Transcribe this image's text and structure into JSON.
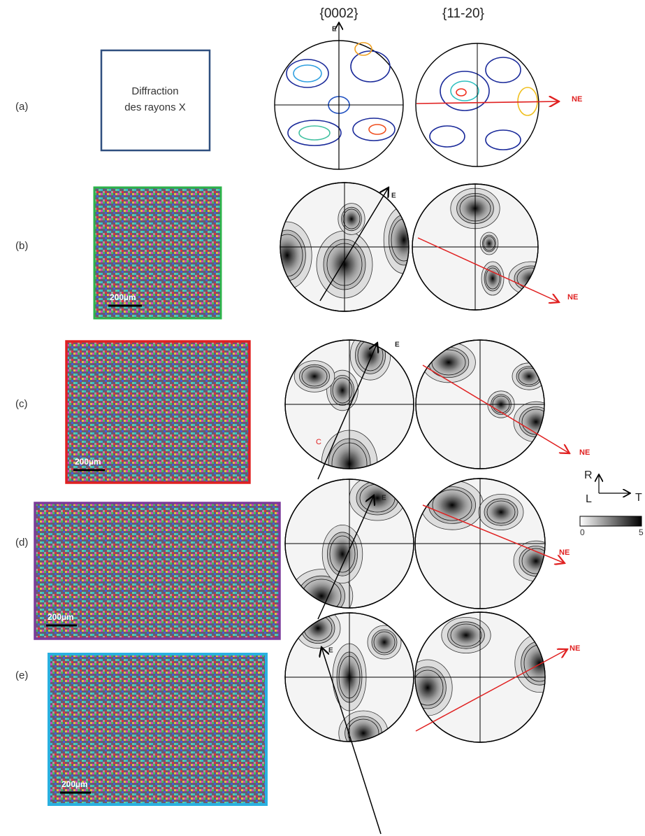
{
  "columns": [
    "{0002}",
    "{11-20}"
  ],
  "rows": [
    {
      "label": "(a)",
      "box_lines": [
        "Diffraction",
        "des rayons X"
      ],
      "axis_0002": "E",
      "axis_11_20": "NE"
    },
    {
      "label": "(b)",
      "scale_bar": "200µm",
      "axis_0002": "E",
      "axis_11_20": "NE"
    },
    {
      "label": "(c)",
      "scale_bar": "200µm",
      "axis_0002": "E",
      "axis_11_20": "NE",
      "mark": "C"
    },
    {
      "label": "(d)",
      "scale_bar": "200µm",
      "axis_0002": "E",
      "axis_11_20": "NE"
    },
    {
      "label": "(e)",
      "scale_bar": "200µm",
      "axis_0002": "E",
      "axis_11_20": "NE"
    }
  ],
  "legend": {
    "axes": [
      "R",
      "L",
      "T"
    ],
    "colorbar": [
      "0",
      "5"
    ]
  }
}
